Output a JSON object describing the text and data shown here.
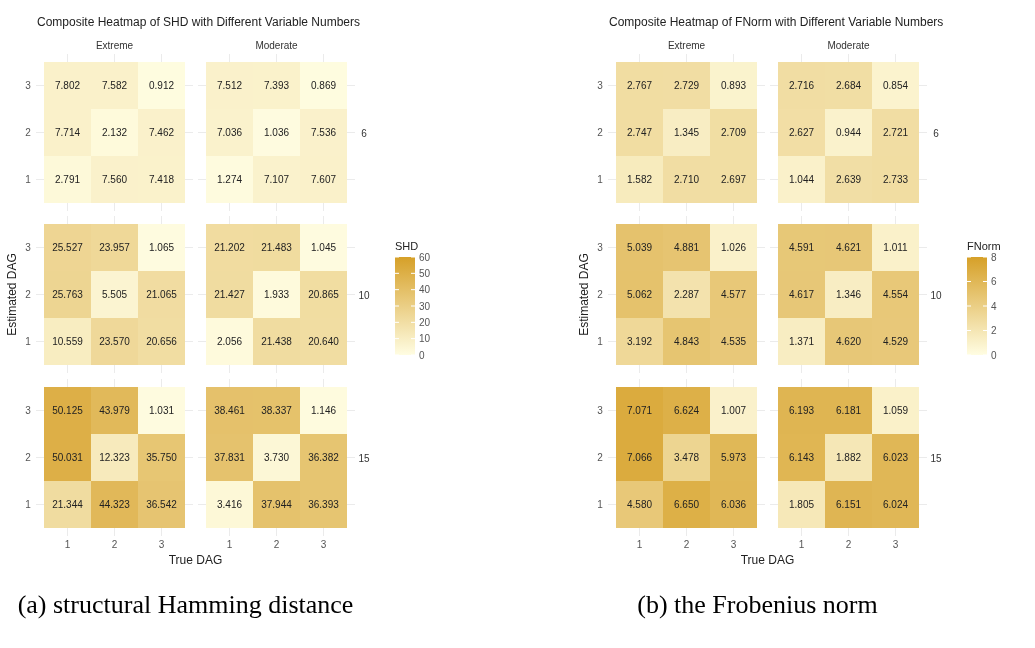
{
  "chart_data": [
    {
      "type": "heatmap",
      "title": "Composite Heatmap of SHD with Different Variable Numbers",
      "subtitle": "Extreme",
      "categories": [
        "1",
        "2",
        "3"
      ],
      "y_categories": [
        "3",
        "2",
        "1"
      ],
      "cells": [
        [
          7.802,
          7.582,
          0.912
        ],
        [
          7.714,
          2.132,
          7.462
        ],
        [
          2.791,
          7.56,
          7.418
        ]
      ],
      "cell_labels": [
        [
          "7.802",
          "7.582",
          "0.912"
        ],
        [
          "7.714",
          "2.132",
          "7.462"
        ],
        [
          "2.791",
          "7.560",
          "7.418"
        ]
      ],
      "grid": true,
      "data_labels": true,
      "tick_labels": "y"
    },
    {
      "type": "heatmap",
      "subtitle": "Moderate",
      "y2label": "6",
      "categories": [
        "1",
        "2",
        "3"
      ],
      "y_categories": [
        "3",
        "2",
        "1"
      ],
      "cells": [
        [
          7.512,
          7.393,
          0.869
        ],
        [
          7.036,
          1.036,
          7.536
        ],
        [
          1.274,
          7.107,
          7.607
        ]
      ],
      "grid": true,
      "data_labels": true,
      "tick_labels": false
    },
    {
      "type": "heatmap",
      "ylabel": "Estimated DAG",
      "categories": [
        "1",
        "2",
        "3"
      ],
      "y_categories": [
        "3",
        "2",
        "1"
      ],
      "cells": [
        [
          25.527,
          23.957,
          1.065
        ],
        [
          25.763,
          5.505,
          21.065
        ],
        [
          10.559,
          23.57,
          20.656
        ]
      ],
      "cell_labels": [
        [
          "25.527",
          "23.957",
          "1.065"
        ],
        [
          "25.763",
          "5.505",
          "21.065"
        ],
        [
          "10.559",
          "23.570",
          "20.656"
        ]
      ],
      "grid": true,
      "data_labels": true,
      "tick_labels": "y"
    },
    {
      "type": "heatmap",
      "y2label": "10",
      "categories": [
        "1",
        "2",
        "3"
      ],
      "y_categories": [
        "3",
        "2",
        "1"
      ],
      "cells": [
        [
          21.202,
          21.483,
          1.045
        ],
        [
          21.427,
          1.933,
          20.865
        ],
        [
          2.056,
          21.438,
          20.64
        ]
      ],
      "cell_labels": [
        [
          "21.202",
          "21.483",
          "1.045"
        ],
        [
          "21.427",
          "1.933",
          "20.865"
        ],
        [
          "2.056",
          "21.438",
          "20.640"
        ]
      ],
      "grid": true,
      "clim": [
        0,
        60
      ],
      "cticks": [
        0,
        10,
        20,
        30,
        40,
        50,
        60
      ],
      "clabel": "SHD",
      "data_labels": true,
      "tick_labels": false
    },
    {
      "type": "heatmap",
      "xlabel": "True DAG",
      "annotations": [
        "(a) structural Hamming distance"
      ],
      "categories": [
        "1",
        "2",
        "3"
      ],
      "y_categories": [
        "3",
        "2",
        "1"
      ],
      "cells": [
        [
          50.125,
          43.979,
          1.031
        ],
        [
          50.031,
          12.323,
          35.75
        ],
        [
          21.344,
          44.323,
          36.542
        ]
      ],
      "cell_labels": [
        [
          "50.125",
          "43.979",
          "1.031"
        ],
        [
          "50.031",
          "12.323",
          "35.750"
        ],
        [
          "21.344",
          "44.323",
          "36.542"
        ]
      ],
      "grid": true,
      "data_labels": true
    },
    {
      "type": "heatmap",
      "y2label": "15",
      "categories": [
        "1",
        "2",
        "3"
      ],
      "y_categories": [
        "3",
        "2",
        "1"
      ],
      "cells": [
        [
          38.461,
          38.337,
          1.146
        ],
        [
          37.831,
          3.73,
          36.382
        ],
        [
          3.416,
          37.944,
          36.393
        ]
      ],
      "cell_labels": [
        [
          "38.461",
          "38.337",
          "1.146"
        ],
        [
          "37.831",
          "3.730",
          "36.382"
        ],
        [
          "3.416",
          "37.944",
          "36.393"
        ]
      ],
      "grid": true,
      "data_labels": true,
      "tick_labels": "x"
    },
    {
      "type": "heatmap",
      "title": "Composite Heatmap of FNorm with Different Variable Numbers",
      "subtitle": "Extreme",
      "categories": [
        "1",
        "2",
        "3"
      ],
      "y_categories": [
        "3",
        "2",
        "1"
      ],
      "cells": [
        [
          2.767,
          2.729,
          0.893
        ],
        [
          2.747,
          1.345,
          2.709
        ],
        [
          1.582,
          2.71,
          2.697
        ]
      ],
      "cell_labels": [
        [
          "2.767",
          "2.729",
          "0.893"
        ],
        [
          "2.747",
          "1.345",
          "2.709"
        ],
        [
          "1.582",
          "2.710",
          "2.697"
        ]
      ],
      "grid": true,
      "data_labels": true,
      "tick_labels": "y"
    },
    {
      "type": "heatmap",
      "subtitle": "Moderate",
      "y2label": "6",
      "categories": [
        "1",
        "2",
        "3"
      ],
      "y_categories": [
        "3",
        "2",
        "1"
      ],
      "cells": [
        [
          2.716,
          2.684,
          0.854
        ],
        [
          2.627,
          0.944,
          2.721
        ],
        [
          1.044,
          2.639,
          2.733
        ]
      ],
      "grid": true,
      "data_labels": true,
      "tick_labels": false
    },
    {
      "type": "heatmap",
      "ylabel": "Estimated DAG",
      "categories": [
        "1",
        "2",
        "3"
      ],
      "y_categories": [
        "3",
        "2",
        "1"
      ],
      "cells": [
        [
          5.039,
          4.881,
          1.026
        ],
        [
          5.062,
          2.287,
          4.577
        ],
        [
          3.192,
          4.843,
          4.535
        ]
      ],
      "grid": true,
      "data_labels": true,
      "tick_labels": "y"
    },
    {
      "type": "heatmap",
      "y2label": "10",
      "categories": [
        "1",
        "2",
        "3"
      ],
      "y_categories": [
        "3",
        "2",
        "1"
      ],
      "cells": [
        [
          4.591,
          4.621,
          1.011
        ],
        [
          4.617,
          1.346,
          4.554
        ],
        [
          1.371,
          4.62,
          4.529
        ]
      ],
      "cell_labels": [
        [
          "4.591",
          "4.621",
          "1.011"
        ],
        [
          "4.617",
          "1.346",
          "4.554"
        ],
        [
          "1.371",
          "4.620",
          "4.529"
        ]
      ],
      "grid": true,
      "clim": [
        0,
        8
      ],
      "cticks": [
        0,
        2,
        4,
        6,
        8
      ],
      "clabel": "FNorm",
      "data_labels": true,
      "tick_labels": false
    },
    {
      "type": "heatmap",
      "xlabel": "True DAG",
      "annotations": [
        "(b) the Frobenius norm"
      ],
      "categories": [
        "1",
        "2",
        "3"
      ],
      "y_categories": [
        "3",
        "2",
        "1"
      ],
      "cells": [
        [
          7.071,
          6.624,
          1.007
        ],
        [
          7.066,
          3.478,
          5.973
        ],
        [
          4.58,
          6.65,
          6.036
        ]
      ],
      "cell_labels": [
        [
          "7.071",
          "6.624",
          "1.007"
        ],
        [
          "7.066",
          "3.478",
          "5.973"
        ],
        [
          "4.580",
          "6.650",
          "6.036"
        ]
      ],
      "grid": true,
      "data_labels": true
    },
    {
      "type": "heatmap",
      "y2label": "15",
      "categories": [
        "1",
        "2",
        "3"
      ],
      "y_categories": [
        "3",
        "2",
        "1"
      ],
      "cells": [
        [
          6.193,
          6.181,
          1.059
        ],
        [
          6.143,
          1.882,
          6.023
        ],
        [
          1.805,
          6.151,
          6.024
        ]
      ],
      "grid": true,
      "data_labels": true,
      "tick_labels": "x"
    }
  ]
}
